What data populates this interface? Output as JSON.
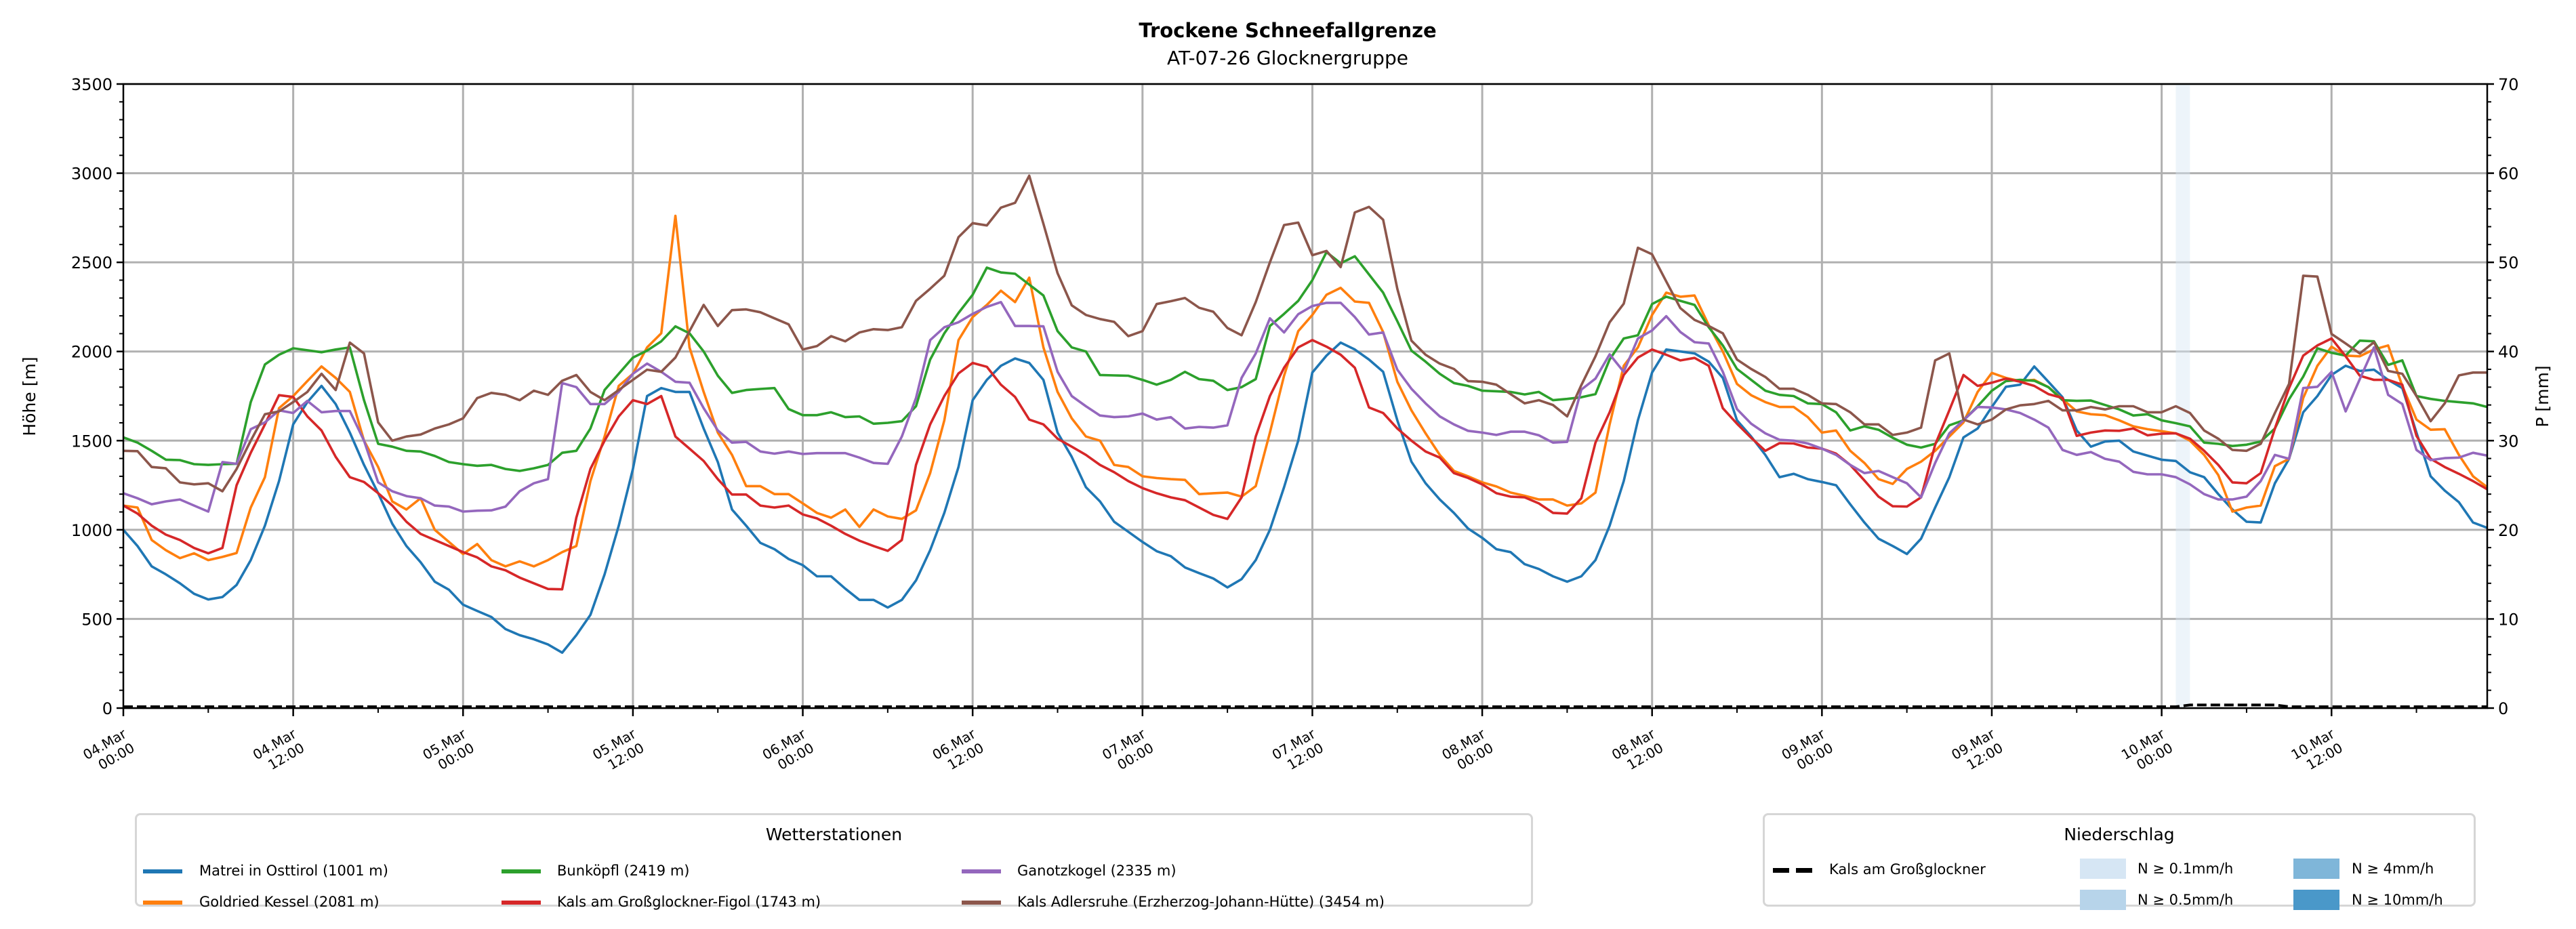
{
  "chart_data": {
    "type": "line",
    "title": "Trockene Schneefallgrenze",
    "subtitle": "AT-07-26 Glocknergruppe",
    "ylabel": "Höhe [m]",
    "ylabel_right": "P [mm]",
    "ylim": [
      0,
      3500
    ],
    "ylim_right": [
      0,
      70
    ],
    "yticks": [
      "0",
      "500",
      "1000",
      "1500",
      "2000",
      "2500",
      "3000",
      "3500"
    ],
    "yticks_right": [
      "0",
      "10",
      "20",
      "30",
      "40",
      "50",
      "60",
      "70"
    ],
    "x_unit": "hours since 04.Mar 00:00",
    "x_start_hour": 0,
    "x_step_hours": 1,
    "xlim_hours": [
      0,
      167
    ],
    "grid": true,
    "xticks": [
      [
        "04.Mar",
        "00:00"
      ],
      [
        "04.Mar",
        "12:00"
      ],
      [
        "05.Mar",
        "00:00"
      ],
      [
        "05.Mar",
        "12:00"
      ],
      [
        "06.Mar",
        "00:00"
      ],
      [
        "06.Mar",
        "12:00"
      ],
      [
        "07.Mar",
        "00:00"
      ],
      [
        "07.Mar",
        "12:00"
      ],
      [
        "08.Mar",
        "00:00"
      ],
      [
        "08.Mar",
        "12:00"
      ],
      [
        "09.Mar",
        "00:00"
      ],
      [
        "09.Mar",
        "12:00"
      ],
      [
        "10.Mar",
        "00:00"
      ],
      [
        "10.Mar",
        "12:00"
      ]
    ],
    "series": [
      {
        "name": "Matrei in Osttirol (1001 m)",
        "color": "#1f77b4",
        "values": [
          1000,
          909,
          795,
          750,
          700,
          641,
          609,
          623,
          691,
          830,
          1023,
          1273,
          1591,
          1716,
          1807,
          1705,
          1545,
          1364,
          1205,
          1034,
          909,
          818,
          709,
          664,
          580,
          545,
          511,
          443,
          409,
          386,
          357,
          311,
          409,
          523,
          750,
          1023,
          1341,
          1750,
          1795,
          1773,
          1773,
          1568,
          1380,
          1114,
          1023,
          927,
          891,
          836,
          802,
          739,
          739,
          670,
          607,
          607,
          564,
          607,
          716,
          886,
          1095,
          1352,
          1727,
          1841,
          1920,
          1961,
          1936,
          1841,
          1545,
          1409,
          1239,
          1159,
          1045,
          989,
          932,
          880,
          852,
          789,
          757,
          727,
          677,
          723,
          830,
          1000,
          1239,
          1500,
          1882,
          1977,
          2050,
          2011,
          1955,
          1886,
          1614,
          1382,
          1261,
          1170,
          1095,
          1007,
          955,
          891,
          875,
          807,
          780,
          739,
          709,
          739,
          830,
          1023,
          1273,
          1614,
          1882,
          2011,
          2000,
          1989,
          1943,
          1852,
          1614,
          1523,
          1420,
          1295,
          1314,
          1284,
          1268,
          1250,
          1143,
          1041,
          950,
          909,
          864,
          950,
          1125,
          1295,
          1518,
          1568,
          1689,
          1802,
          1814,
          1916,
          1830,
          1743,
          1557,
          1466,
          1495,
          1500,
          1439,
          1416,
          1393,
          1386,
          1323,
          1295,
          1200,
          1114,
          1045,
          1041,
          1261,
          1398,
          1659,
          1750,
          1868,
          1920,
          1891,
          1898,
          1841,
          1795,
          1545,
          1300,
          1220,
          1155,
          1041,
          1011
        ]
      },
      {
        "name": "Goldried Kessel (2081 m)",
        "color": "#ff7f0e",
        "values": [
          1136,
          1125,
          943,
          886,
          841,
          868,
          830,
          848,
          870,
          1125,
          1295,
          1682,
          1750,
          1834,
          1916,
          1852,
          1773,
          1500,
          1352,
          1159,
          1114,
          1177,
          1000,
          932,
          864,
          920,
          830,
          795,
          823,
          795,
          830,
          875,
          909,
          1273,
          1523,
          1807,
          1875,
          2023,
          2102,
          2761,
          2023,
          1773,
          1545,
          1420,
          1245,
          1245,
          1200,
          1200,
          1148,
          1095,
          1068,
          1114,
          1016,
          1114,
          1075,
          1061,
          1109,
          1318,
          1614,
          2064,
          2193,
          2261,
          2341,
          2277,
          2414,
          2023,
          1773,
          1625,
          1523,
          1500,
          1364,
          1352,
          1300,
          1290,
          1284,
          1280,
          1200,
          1205,
          1209,
          1186,
          1245,
          1545,
          1864,
          2114,
          2205,
          2318,
          2357,
          2280,
          2273,
          2109,
          1830,
          1670,
          1541,
          1420,
          1330,
          1300,
          1266,
          1243,
          1209,
          1191,
          1170,
          1170,
          1136,
          1148,
          1209,
          1591,
          1920,
          2023,
          2205,
          2330,
          2307,
          2314,
          2148,
          2000,
          1818,
          1755,
          1716,
          1689,
          1689,
          1632,
          1545,
          1557,
          1443,
          1375,
          1284,
          1257,
          1341,
          1382,
          1443,
          1523,
          1602,
          1773,
          1880,
          1852,
          1834,
          1841,
          1800,
          1732,
          1664,
          1648,
          1643,
          1614,
          1580,
          1564,
          1553,
          1541,
          1500,
          1420,
          1307,
          1102,
          1125,
          1136,
          1357,
          1398,
          1739,
          1920,
          2027,
          1977,
          1973,
          2011,
          2034,
          1807,
          1618,
          1561,
          1564,
          1420,
          1300,
          1239
        ]
      },
      {
        "name": "Bunköpfl (2419 m)",
        "color": "#2ca02c",
        "values": [
          1518,
          1489,
          1443,
          1393,
          1391,
          1368,
          1364,
          1368,
          1370,
          1716,
          1927,
          1982,
          2018,
          2007,
          1996,
          2011,
          2023,
          1727,
          1482,
          1466,
          1443,
          1439,
          1414,
          1380,
          1368,
          1359,
          1364,
          1341,
          1330,
          1345,
          1364,
          1432,
          1443,
          1568,
          1784,
          1875,
          1966,
          2005,
          2057,
          2141,
          2102,
          2000,
          1864,
          1768,
          1784,
          1790,
          1795,
          1677,
          1643,
          1643,
          1659,
          1632,
          1636,
          1595,
          1600,
          1609,
          1693,
          1955,
          2102,
          2216,
          2318,
          2470,
          2443,
          2436,
          2375,
          2314,
          2114,
          2023,
          2000,
          1868,
          1866,
          1864,
          1841,
          1814,
          1841,
          1886,
          1845,
          1836,
          1784,
          1800,
          1845,
          2143,
          2211,
          2284,
          2400,
          2557,
          2495,
          2534,
          2432,
          2330,
          2170,
          2005,
          1943,
          1875,
          1823,
          1807,
          1780,
          1777,
          1773,
          1759,
          1773,
          1727,
          1734,
          1743,
          1761,
          1955,
          2073,
          2091,
          2266,
          2307,
          2284,
          2261,
          2136,
          2034,
          1902,
          1841,
          1780,
          1757,
          1750,
          1709,
          1705,
          1659,
          1557,
          1580,
          1561,
          1516,
          1477,
          1461,
          1482,
          1586,
          1614,
          1693,
          1780,
          1834,
          1841,
          1836,
          1800,
          1727,
          1723,
          1725,
          1700,
          1675,
          1641,
          1648,
          1614,
          1598,
          1580,
          1489,
          1482,
          1470,
          1477,
          1495,
          1568,
          1732,
          1859,
          2018,
          1993,
          1977,
          2061,
          2057,
          1925,
          1950,
          1750,
          1734,
          1723,
          1716,
          1709,
          1689
        ]
      },
      {
        "name": "Kals am Großglockner-Figol (1743 m)",
        "color": "#d62728",
        "values": [
          1136,
          1091,
          1023,
          973,
          943,
          898,
          868,
          898,
          1250,
          1432,
          1591,
          1755,
          1745,
          1636,
          1557,
          1409,
          1295,
          1268,
          1205,
          1136,
          1045,
          977,
          943,
          909,
          875,
          845,
          795,
          773,
          732,
          700,
          668,
          666,
          1068,
          1341,
          1500,
          1636,
          1727,
          1705,
          1750,
          1523,
          1455,
          1386,
          1284,
          1198,
          1198,
          1136,
          1125,
          1136,
          1086,
          1064,
          1023,
          977,
          939,
          909,
          882,
          943,
          1364,
          1591,
          1750,
          1877,
          1936,
          1914,
          1814,
          1745,
          1618,
          1591,
          1511,
          1466,
          1420,
          1364,
          1323,
          1273,
          1234,
          1205,
          1182,
          1166,
          1125,
          1084,
          1061,
          1182,
          1523,
          1750,
          1909,
          2023,
          2064,
          2027,
          1982,
          1909,
          1686,
          1655,
          1568,
          1500,
          1439,
          1405,
          1318,
          1291,
          1255,
          1205,
          1186,
          1182,
          1148,
          1095,
          1091,
          1177,
          1489,
          1659,
          1868,
          1966,
          2011,
          1982,
          1950,
          1964,
          1920,
          1682,
          1595,
          1516,
          1443,
          1486,
          1484,
          1461,
          1455,
          1427,
          1364,
          1277,
          1186,
          1132,
          1130,
          1182,
          1477,
          1670,
          1868,
          1807,
          1825,
          1848,
          1830,
          1807,
          1761,
          1739,
          1527,
          1545,
          1557,
          1555,
          1568,
          1530,
          1539,
          1541,
          1511,
          1443,
          1364,
          1266,
          1261,
          1318,
          1568,
          1795,
          1977,
          2034,
          2073,
          1973,
          1864,
          1841,
          1841,
          1814,
          1527,
          1398,
          1352,
          1314,
          1273,
          1227
        ]
      },
      {
        "name": "Ganotzkogel (2335 m)",
        "color": "#9467bd",
        "values": [
          1205,
          1177,
          1143,
          1159,
          1170,
          1136,
          1102,
          1380,
          1370,
          1564,
          1602,
          1670,
          1655,
          1723,
          1659,
          1666,
          1666,
          1500,
          1266,
          1216,
          1189,
          1177,
          1136,
          1130,
          1102,
          1107,
          1109,
          1130,
          1216,
          1261,
          1284,
          1823,
          1800,
          1705,
          1705,
          1773,
          1875,
          1932,
          1886,
          1830,
          1825,
          1682,
          1557,
          1489,
          1493,
          1439,
          1427,
          1439,
          1425,
          1430,
          1430,
          1430,
          1405,
          1375,
          1370,
          1523,
          1739,
          2064,
          2136,
          2164,
          2211,
          2250,
          2277,
          2143,
          2143,
          2141,
          1886,
          1750,
          1693,
          1641,
          1632,
          1636,
          1652,
          1618,
          1632,
          1568,
          1577,
          1573,
          1586,
          1852,
          1989,
          2186,
          2107,
          2209,
          2255,
          2273,
          2273,
          2193,
          2095,
          2107,
          1898,
          1791,
          1709,
          1636,
          1591,
          1555,
          1545,
          1532,
          1550,
          1550,
          1530,
          1489,
          1493,
          1786,
          1848,
          1984,
          1886,
          2073,
          2118,
          2198,
          2109,
          2052,
          2045,
          1886,
          1677,
          1595,
          1541,
          1505,
          1500,
          1484,
          1455,
          1420,
          1364,
          1318,
          1330,
          1295,
          1261,
          1182,
          1375,
          1541,
          1614,
          1689,
          1686,
          1675,
          1655,
          1618,
          1573,
          1448,
          1420,
          1436,
          1398,
          1382,
          1325,
          1311,
          1311,
          1295,
          1255,
          1200,
          1170,
          1170,
          1186,
          1273,
          1420,
          1398,
          1795,
          1802,
          1886,
          1664,
          1845,
          2023,
          1757,
          1705,
          1448,
          1391,
          1402,
          1405,
          1432,
          1416
        ]
      },
      {
        "name": "Kals Adlersruhe (Erzherzog-Johann-Hütte) (3454 m)",
        "color": "#8c564b",
        "values": [
          1443,
          1441,
          1352,
          1345,
          1266,
          1255,
          1261,
          1216,
          1341,
          1500,
          1648,
          1664,
          1716,
          1773,
          1875,
          1784,
          2050,
          1989,
          1602,
          1500,
          1523,
          1534,
          1568,
          1591,
          1625,
          1739,
          1768,
          1757,
          1727,
          1780,
          1757,
          1836,
          1868,
          1773,
          1727,
          1784,
          1841,
          1898,
          1886,
          1966,
          2114,
          2261,
          2143,
          2232,
          2236,
          2220,
          2186,
          2152,
          2011,
          2030,
          2086,
          2057,
          2107,
          2125,
          2120,
          2136,
          2284,
          2352,
          2425,
          2641,
          2720,
          2707,
          2807,
          2834,
          2986,
          2716,
          2439,
          2259,
          2205,
          2182,
          2166,
          2086,
          2114,
          2266,
          2282,
          2300,
          2245,
          2223,
          2132,
          2091,
          2277,
          2500,
          2709,
          2723,
          2540,
          2564,
          2473,
          2780,
          2811,
          2739,
          2352,
          2061,
          1982,
          1932,
          1902,
          1834,
          1830,
          1814,
          1761,
          1709,
          1727,
          1700,
          1636,
          1811,
          1973,
          2164,
          2268,
          2582,
          2545,
          2393,
          2243,
          2177,
          2143,
          2102,
          1955,
          1902,
          1857,
          1791,
          1791,
          1757,
          1709,
          1705,
          1659,
          1591,
          1591,
          1532,
          1545,
          1573,
          1950,
          1989,
          1618,
          1591,
          1618,
          1675,
          1698,
          1705,
          1723,
          1670,
          1670,
          1689,
          1675,
          1693,
          1693,
          1659,
          1659,
          1693,
          1655,
          1557,
          1511,
          1448,
          1443,
          1482,
          1655,
          1818,
          2425,
          2420,
          2098,
          2045,
          1989,
          2052,
          1891,
          1875,
          1750,
          1609,
          1709,
          1866,
          1882,
          1882
        ]
      }
    ],
    "precipitation_line": {
      "name": "Kals am Großglockner",
      "color": "#000000",
      "points_hour_mm": [
        [
          0,
          0
        ],
        [
          145,
          0
        ],
        [
          146,
          0.2
        ],
        [
          152,
          0.2
        ],
        [
          153,
          0
        ],
        [
          167,
          0
        ]
      ]
    },
    "precipitation_bars": [
      {
        "hour": 145,
        "class_index": 0
      }
    ],
    "precipitation_classes": [
      {
        "label": "N ≥ 0.1mm/h",
        "color": "#d6e6f4"
      },
      {
        "label": "N ≥ 0.5mm/h",
        "color": "#b7d4ea"
      },
      {
        "label": "N ≥ 4mm/h",
        "color": "#7fb6d9"
      },
      {
        "label": "N ≥ 10mm/h",
        "color": "#4a98c9"
      }
    ],
    "legend_stations_title": "Wetterstationen",
    "legend_precip_title": "Niederschlag",
    "legend_placement": "bottom"
  }
}
